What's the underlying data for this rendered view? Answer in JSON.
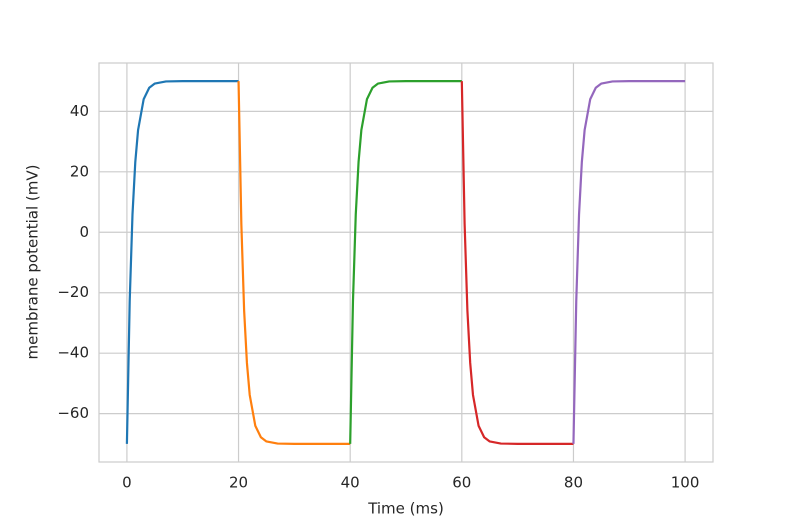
{
  "chart_data": {
    "type": "line",
    "xlabel": "Time (ms)",
    "ylabel": "membrane potential (mV)",
    "xlim": [
      -5,
      105
    ],
    "ylim": [
      -76,
      56
    ],
    "xticks": [
      0,
      20,
      40,
      60,
      80,
      100
    ],
    "yticks": [
      {
        "value": -60,
        "label": "−60"
      },
      {
        "value": -40,
        "label": "−40"
      },
      {
        "value": -20,
        "label": "−20"
      },
      0,
      20,
      40
    ],
    "grid": true,
    "series": [
      {
        "color": "#1f77b4",
        "x": [
          0,
          0.5,
          1,
          1.5,
          2,
          3,
          4,
          5,
          7,
          10,
          15,
          20
        ],
        "values": [
          -70,
          -22.8,
          5.9,
          23.2,
          33.8,
          44.0,
          47.8,
          49.2,
          49.9,
          50,
          50,
          50
        ]
      },
      {
        "color": "#ff7f0e",
        "x": [
          20,
          20.5,
          21,
          21.5,
          22,
          23,
          24,
          25,
          27,
          30,
          35,
          40
        ],
        "values": [
          50,
          2.8,
          -25.9,
          -43.2,
          -53.8,
          -64.0,
          -67.8,
          -69.2,
          -69.9,
          -70,
          -70,
          -70
        ]
      },
      {
        "color": "#2ca02c",
        "x": [
          40,
          40.5,
          41,
          41.5,
          42,
          43,
          44,
          45,
          47,
          50,
          55,
          60
        ],
        "values": [
          -70,
          -22.8,
          5.9,
          23.2,
          33.8,
          44.0,
          47.8,
          49.2,
          49.9,
          50,
          50,
          50
        ]
      },
      {
        "color": "#d62728",
        "x": [
          60,
          60.5,
          61,
          61.5,
          62,
          63,
          64,
          65,
          67,
          70,
          75,
          80
        ],
        "values": [
          50,
          2.8,
          -25.9,
          -43.2,
          -53.8,
          -64.0,
          -67.8,
          -69.2,
          -69.9,
          -70,
          -70,
          -70
        ]
      },
      {
        "color": "#9467bd",
        "x": [
          80,
          80.5,
          81,
          81.5,
          82,
          83,
          84,
          85,
          87,
          90,
          95,
          100
        ],
        "values": [
          -70,
          -22.8,
          5.9,
          23.2,
          33.8,
          44.0,
          47.8,
          49.2,
          49.9,
          50,
          50,
          50
        ]
      }
    ]
  }
}
